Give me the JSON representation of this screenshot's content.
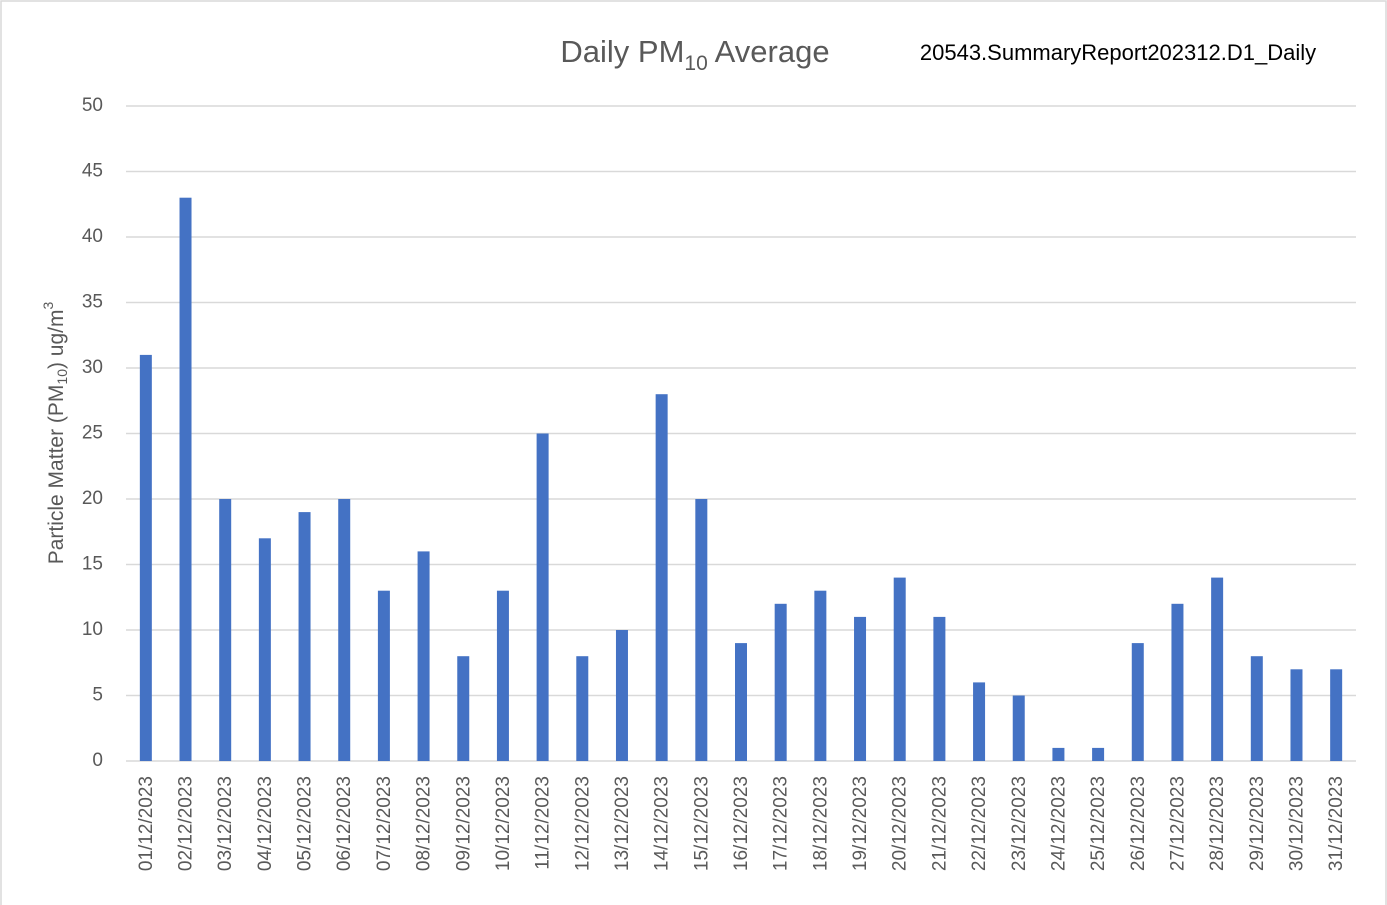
{
  "chart_data": {
    "type": "bar",
    "title": [
      "Daily PM",
      "10",
      " Average"
    ],
    "subtitle": "20543.SummaryReport202312.D1_Daily",
    "y_label": [
      "Particle Matter (PM",
      "10",
      ") ug/m",
      "3"
    ],
    "categories": [
      "01/12/2023",
      "02/12/2023",
      "03/12/2023",
      "04/12/2023",
      "05/12/2023",
      "06/12/2023",
      "07/12/2023",
      "08/12/2023",
      "09/12/2023",
      "10/12/2023",
      "11/12/2023",
      "12/12/2023",
      "13/12/2023",
      "14/12/2023",
      "15/12/2023",
      "16/12/2023",
      "17/12/2023",
      "18/12/2023",
      "19/12/2023",
      "20/12/2023",
      "21/12/2023",
      "22/12/2023",
      "23/12/2023",
      "24/12/2023",
      "25/12/2023",
      "26/12/2023",
      "27/12/2023",
      "28/12/2023",
      "29/12/2023",
      "30/12/2023",
      "31/12/2023"
    ],
    "values": [
      31,
      43,
      20,
      17,
      19,
      20,
      13,
      16,
      8,
      13,
      25,
      8,
      10,
      28,
      20,
      9,
      12,
      13,
      11,
      14,
      11,
      6,
      5,
      1,
      1,
      9,
      12,
      14,
      8,
      7,
      7
    ],
    "color": "#4472c4",
    "ylim": [
      0,
      50
    ],
    "yticks": [
      0,
      5,
      10,
      15,
      20,
      25,
      30,
      35,
      40,
      45,
      50
    ],
    "grid": true
  }
}
